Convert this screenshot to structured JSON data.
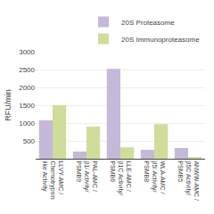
{
  "chart_data": {
    "type": "bar",
    "categories": [
      "LLVY-AMC /\nChemotrypsin\nlike Activity",
      "PAL-AMC /\nβ1i Activity/\nPSMB9",
      "LLE-AMC /\nβ1C Activity/\nPSMB6",
      "WLA-AMC /\nβ5i Activity/\nPSMB8",
      "ANWW-AMC /\nβ5C Activity/\nPSMB5"
    ],
    "series": [
      {
        "name": "20S Proteasome",
        "color": "#c5b8d8",
        "values": [
          1075,
          200,
          2520,
          250,
          300
        ]
      },
      {
        "name": "20S Immunoproteasome",
        "color": "#d0dc9a",
        "values": [
          1500,
          900,
          320,
          970,
          50
        ]
      }
    ],
    "ylabel": "RFU/min",
    "ylim": [
      0,
      3000
    ],
    "yticks": [
      500,
      1000,
      1500,
      2000,
      2500,
      3000
    ],
    "grid": true,
    "legend": "upper right"
  }
}
